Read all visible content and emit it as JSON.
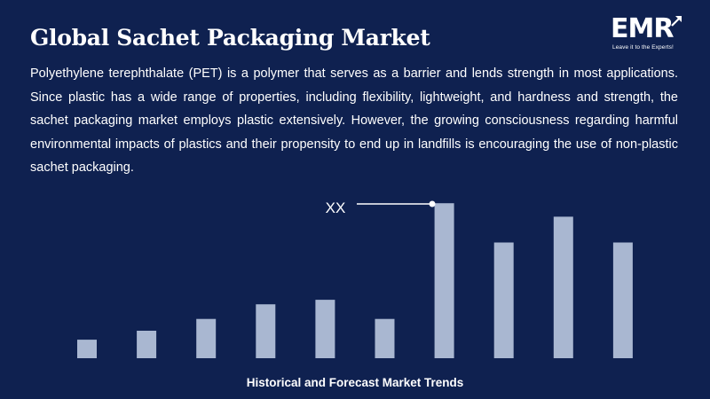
{
  "header": {
    "title": "Global Sachet Packaging Market",
    "description": "Polyethylene terephthalate (PET) is a polymer that serves as a barrier and lends strength in most applications. Since plastic has a wide range of properties, including flexibility, lightweight, and hardness and strength, the sachet packaging market employs plastic extensively. However, the growing consciousness regarding harmful environmental impacts of plastics and their propensity to end up in landfills is encouraging the use of non-plastic sachet packaging."
  },
  "logo": {
    "text": "EMR",
    "tagline": "Leave it to the Experts!"
  },
  "footer": {
    "caption": "Historical and Forecast Market Trends"
  },
  "colors": {
    "background": "#0f2150",
    "bar": "#a9b7d1",
    "text": "#ffffff"
  },
  "chart_data": {
    "type": "bar",
    "values": [
      3.3,
      4.9,
      7.0,
      9.6,
      10.4,
      7.0,
      27.6,
      20.6,
      25.2,
      20.6
    ],
    "ylim": [
      0,
      30
    ],
    "annotation": {
      "label": "XX",
      "bar_index": 6
    },
    "grid": false,
    "axes_visible": false
  }
}
